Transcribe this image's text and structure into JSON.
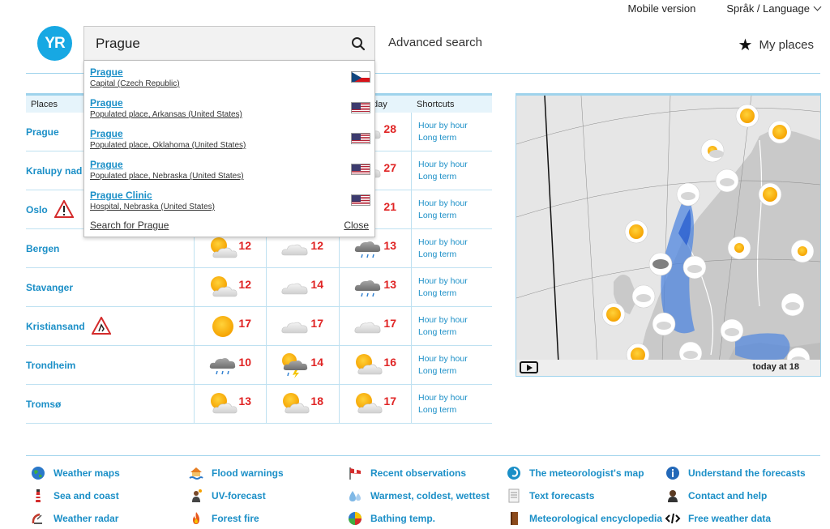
{
  "topbar": {
    "mobile": "Mobile version",
    "language": "Språk / Language"
  },
  "header": {
    "logo": "YR",
    "search_value": "Prague",
    "advanced_search": "Advanced search",
    "my_places": "My places"
  },
  "dropdown": {
    "suggestions": [
      {
        "name": "Prague",
        "desc": "Capital (Czech Republic)",
        "flag": "cz"
      },
      {
        "name": "Prague",
        "desc": "Populated place, Arkansas (United States)",
        "flag": "us"
      },
      {
        "name": "Prague",
        "desc": "Populated place, Oklahoma (United States)",
        "flag": "us"
      },
      {
        "name": "Prague",
        "desc": "Populated place, Nebraska (United States)",
        "flag": "us"
      },
      {
        "name": "Prague Clinic",
        "desc": "Hospital, Nebraska (United States)",
        "flag": "us"
      }
    ],
    "search_for": "Search for Prague",
    "close": "Close"
  },
  "table": {
    "headers": {
      "places": "Places",
      "day": "day",
      "shortcuts": "Shortcuts"
    },
    "shortcut_hour": "Hour by hour",
    "shortcut_long": "Long term",
    "rows": [
      {
        "place": "Prague",
        "warning": "",
        "cells": [
          {
            "icon": "",
            "temp": ""
          },
          {
            "icon": "",
            "temp": ""
          },
          {
            "icon": "cloud",
            "temp": "28"
          }
        ]
      },
      {
        "place": "Kralupy nad V",
        "warning": "",
        "cells": [
          {
            "icon": "",
            "temp": ""
          },
          {
            "icon": "",
            "temp": ""
          },
          {
            "icon": "cloud",
            "temp": "27"
          }
        ]
      },
      {
        "place": "Oslo",
        "warning": "warning-triangle-icon",
        "cells": [
          {
            "icon": "",
            "temp": ""
          },
          {
            "icon": "",
            "temp": ""
          },
          {
            "icon": "",
            "temp": "21"
          }
        ]
      },
      {
        "place": "Bergen",
        "warning": "",
        "cells": [
          {
            "icon": "sun-cloud",
            "temp": "12"
          },
          {
            "icon": "cloud",
            "temp": "12"
          },
          {
            "icon": "rain-cloud",
            "temp": "13"
          }
        ]
      },
      {
        "place": "Stavanger",
        "warning": "",
        "cells": [
          {
            "icon": "sun-cloud",
            "temp": "12"
          },
          {
            "icon": "cloud",
            "temp": "14"
          },
          {
            "icon": "rain-cloud",
            "temp": "13"
          }
        ]
      },
      {
        "place": "Kristiansand",
        "warning": "road-warning-icon",
        "cells": [
          {
            "icon": "sun",
            "temp": "17"
          },
          {
            "icon": "cloud",
            "temp": "17"
          },
          {
            "icon": "cloud",
            "temp": "17"
          }
        ]
      },
      {
        "place": "Trondheim",
        "warning": "",
        "cells": [
          {
            "icon": "rain-cloud",
            "temp": "10"
          },
          {
            "icon": "thunder-sun",
            "temp": "14"
          },
          {
            "icon": "sun-cloud",
            "temp": "16"
          }
        ]
      },
      {
        "place": "Tromsø",
        "warning": "",
        "cells": [
          {
            "icon": "sun-cloud",
            "temp": "13"
          },
          {
            "icon": "sun-cloud",
            "temp": "18"
          },
          {
            "icon": "sun-cloud",
            "temp": "17"
          }
        ]
      }
    ]
  },
  "map": {
    "time_label": "today at 18"
  },
  "footer": {
    "links": [
      {
        "label": "Weather maps",
        "icon": "globe-icon"
      },
      {
        "label": "Sea and coast",
        "icon": "lighthouse-icon"
      },
      {
        "label": "Weather radar",
        "icon": "radar-icon"
      },
      {
        "label": "Flood warnings",
        "icon": "flood-icon"
      },
      {
        "label": "UV-forecast",
        "icon": "uv-person-icon"
      },
      {
        "label": "Forest fire",
        "icon": "fire-icon"
      },
      {
        "label": "Recent observations",
        "icon": "windsock-icon"
      },
      {
        "label": "Warmest, coldest, wettest",
        "icon": "drops-icon"
      },
      {
        "label": "Bathing temp.",
        "icon": "beach-ball-icon"
      },
      {
        "label": "The meteorologist's map",
        "icon": "swirl-icon"
      },
      {
        "label": "Text forecasts",
        "icon": "document-icon"
      },
      {
        "label": "Meteorological encyclopedia",
        "icon": "book-icon"
      },
      {
        "label": "Understand the forecasts",
        "icon": "info-icon"
      },
      {
        "label": "Contact and help",
        "icon": "person-icon"
      },
      {
        "label": "Free weather data",
        "icon": "code-icon"
      }
    ]
  },
  "colors": {
    "accent": "#1b8fc7",
    "logo": "#17a8e3",
    "temp": "#e02424",
    "line": "#9fd3ec"
  }
}
